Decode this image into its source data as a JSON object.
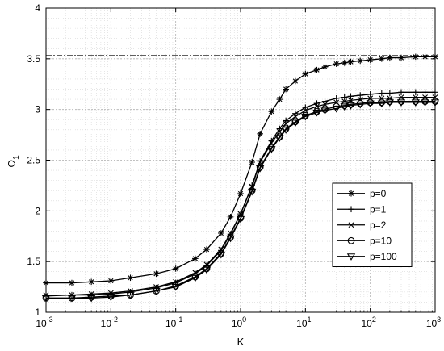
{
  "chart_data": {
    "type": "line",
    "title": "",
    "xlabel": "K",
    "ylabel": "Ω",
    "ylabel_subscript": "1",
    "x_scale": "log",
    "xlim": [
      0.001,
      1000
    ],
    "ylim": [
      1,
      4
    ],
    "grid": true,
    "minor_grid": true,
    "legend_position": "lower-right",
    "x_ticks": [
      {
        "base": "10",
        "exp": "-3",
        "value": 0.001
      },
      {
        "base": "10",
        "exp": "-2",
        "value": 0.01
      },
      {
        "base": "10",
        "exp": "-1",
        "value": 0.1
      },
      {
        "base": "10",
        "exp": "0",
        "value": 1
      },
      {
        "base": "10",
        "exp": "1",
        "value": 10
      },
      {
        "base": "10",
        "exp": "2",
        "value": 100
      },
      {
        "base": "10",
        "exp": "3",
        "value": 1000
      }
    ],
    "y_ticks": [
      {
        "label": "1",
        "value": 1
      },
      {
        "label": "1.5",
        "value": 1.5
      },
      {
        "label": "2",
        "value": 2
      },
      {
        "label": "2.5",
        "value": 2.5
      },
      {
        "label": "3",
        "value": 3
      },
      {
        "label": "3.5",
        "value": 3.5
      },
      {
        "label": "4",
        "value": 4
      }
    ],
    "reference_line": {
      "y": 3.53,
      "style": "dash-dot"
    },
    "x": [
      0.001,
      0.0025,
      0.005,
      0.01,
      0.02,
      0.05,
      0.1,
      0.2,
      0.3,
      0.5,
      0.7,
      1,
      1.5,
      2,
      3,
      4,
      5,
      7,
      10,
      15,
      20,
      30,
      40,
      50,
      70,
      100,
      150,
      200,
      300,
      500,
      700,
      1000
    ],
    "series": [
      {
        "name": "p=0",
        "marker": "asterisk",
        "values": [
          1.29,
          1.29,
          1.3,
          1.31,
          1.34,
          1.38,
          1.43,
          1.53,
          1.62,
          1.78,
          1.94,
          2.17,
          2.48,
          2.76,
          2.98,
          3.1,
          3.2,
          3.28,
          3.35,
          3.39,
          3.42,
          3.45,
          3.46,
          3.47,
          3.48,
          3.49,
          3.5,
          3.51,
          3.51,
          3.52,
          3.52,
          3.52
        ]
      },
      {
        "name": "p=1",
        "marker": "plus",
        "values": [
          1.16,
          1.17,
          1.17,
          1.18,
          1.2,
          1.24,
          1.29,
          1.38,
          1.46,
          1.61,
          1.77,
          1.97,
          2.25,
          2.49,
          2.69,
          2.81,
          2.89,
          2.96,
          3.02,
          3.06,
          3.08,
          3.11,
          3.12,
          3.13,
          3.14,
          3.15,
          3.16,
          3.16,
          3.17,
          3.17,
          3.17,
          3.17
        ]
      },
      {
        "name": "p=2",
        "marker": "cross",
        "values": [
          1.17,
          1.17,
          1.18,
          1.19,
          1.21,
          1.25,
          1.3,
          1.39,
          1.47,
          1.62,
          1.78,
          1.97,
          2.24,
          2.48,
          2.67,
          2.78,
          2.86,
          2.93,
          2.99,
          3.03,
          3.05,
          3.07,
          3.08,
          3.09,
          3.1,
          3.11,
          3.11,
          3.11,
          3.12,
          3.12,
          3.12,
          3.12
        ]
      },
      {
        "name": "p=10",
        "marker": "circle",
        "values": [
          1.14,
          1.14,
          1.15,
          1.16,
          1.17,
          1.21,
          1.26,
          1.35,
          1.43,
          1.58,
          1.74,
          1.93,
          2.2,
          2.43,
          2.62,
          2.73,
          2.81,
          2.88,
          2.94,
          2.98,
          3.0,
          3.03,
          3.04,
          3.05,
          3.06,
          3.07,
          3.07,
          3.08,
          3.08,
          3.08,
          3.08,
          3.08
        ]
      },
      {
        "name": "p=100",
        "marker": "triangle-down",
        "values": [
          1.14,
          1.14,
          1.14,
          1.15,
          1.17,
          1.21,
          1.25,
          1.34,
          1.42,
          1.57,
          1.73,
          1.92,
          2.19,
          2.42,
          2.61,
          2.72,
          2.8,
          2.87,
          2.93,
          2.97,
          2.99,
          3.01,
          3.03,
          3.04,
          3.05,
          3.06,
          3.06,
          3.07,
          3.07,
          3.07,
          3.07,
          3.07
        ]
      }
    ]
  }
}
